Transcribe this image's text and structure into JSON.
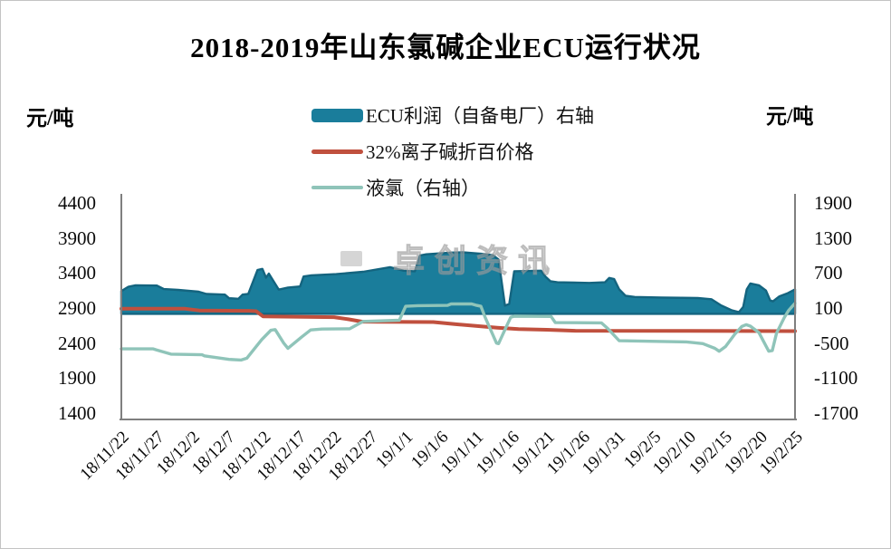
{
  "chart_data": {
    "type": "area+line combo",
    "title": "2018-2019年山东氯碱企业ECU运行状况",
    "legend_position": "top-center",
    "grid": false,
    "x_tick_labels": [
      "18/11/22",
      "18/11/27",
      "18/12/2",
      "18/12/7",
      "18/12/12",
      "18/12/17",
      "18/12/22",
      "18/12/27",
      "19/1/1",
      "19/1/6",
      "19/1/11",
      "19/1/16",
      "19/1/21",
      "19/1/26",
      "19/1/31",
      "19/2/5",
      "19/2/10",
      "19/2/15",
      "19/2/20",
      "19/2/25"
    ],
    "x_tick_day_indices": [
      0,
      5,
      10,
      15,
      20,
      25,
      30,
      35,
      40,
      45,
      50,
      55,
      60,
      65,
      70,
      75,
      80,
      85,
      90,
      95
    ],
    "x_range_days": [
      0,
      95
    ],
    "axes": {
      "left": {
        "unit": "元/吨",
        "ticks": [
          4400,
          3900,
          3400,
          2900,
          2400,
          1900,
          1400
        ],
        "max": 4400,
        "min": 1400
      },
      "right": {
        "unit": "元/吨",
        "ticks": [
          1900,
          1300,
          700,
          100,
          -500,
          -1100,
          -1700
        ],
        "max": 1900,
        "min": -1700
      }
    },
    "series": [
      {
        "name": "ECU利润（自备电厂）右轴",
        "axis": "right",
        "style": "area",
        "baseline": 0,
        "color": "#1a7d9b",
        "points": [
          [
            0,
            390
          ],
          [
            1,
            465
          ],
          [
            2,
            490
          ],
          [
            5,
            485
          ],
          [
            6,
            425
          ],
          [
            8,
            410
          ],
          [
            10.9,
            380
          ],
          [
            12,
            340
          ],
          [
            14.6,
            330
          ],
          [
            15.2,
            268
          ],
          [
            16.5,
            258
          ],
          [
            17.1,
            330
          ],
          [
            17.9,
            342
          ],
          [
            19.2,
            750
          ],
          [
            19.9,
            770
          ],
          [
            20.4,
            620
          ],
          [
            20.8,
            690
          ],
          [
            22.2,
            415
          ],
          [
            23.5,
            450
          ],
          [
            25.2,
            470
          ],
          [
            25.7,
            640
          ],
          [
            26.8,
            660
          ],
          [
            30.3,
            680
          ],
          [
            34.1,
            720
          ],
          [
            37.9,
            800
          ],
          [
            39.8,
            740
          ],
          [
            41.4,
            730
          ],
          [
            42.1,
            1000
          ],
          [
            43,
            1020
          ],
          [
            46.5,
            1050
          ],
          [
            48.1,
            1055
          ],
          [
            50.7,
            1030
          ],
          [
            52.4,
            1005
          ],
          [
            53.2,
            930
          ],
          [
            54.1,
            140
          ],
          [
            54.7,
            170
          ],
          [
            55.4,
            730
          ],
          [
            59.2,
            740
          ],
          [
            59.8,
            640
          ],
          [
            60.5,
            560
          ],
          [
            61.5,
            540
          ],
          [
            66,
            530
          ],
          [
            68.2,
            540
          ],
          [
            68.8,
            615
          ],
          [
            69.5,
            595
          ],
          [
            70.2,
            420
          ],
          [
            71.1,
            310
          ],
          [
            72.4,
            290
          ],
          [
            76.2,
            280
          ],
          [
            81.3,
            270
          ],
          [
            83.2,
            250
          ],
          [
            84.5,
            150
          ],
          [
            86.1,
            60
          ],
          [
            87.1,
            30
          ],
          [
            87.7,
            120
          ],
          [
            88.2,
            420
          ],
          [
            88.7,
            520
          ],
          [
            89.9,
            490
          ],
          [
            90.9,
            400
          ],
          [
            91.5,
            230
          ],
          [
            91.9,
            215
          ],
          [
            92.8,
            300
          ],
          [
            93.9,
            350
          ],
          [
            95,
            420
          ]
        ]
      },
      {
        "name": "32%离子碱折百价格",
        "axis": "left",
        "style": "line",
        "color": "#c0503e",
        "points": [
          [
            0,
            2890
          ],
          [
            9,
            2890
          ],
          [
            11,
            2865
          ],
          [
            18,
            2860
          ],
          [
            19,
            2855
          ],
          [
            20,
            2780
          ],
          [
            30,
            2770
          ],
          [
            32,
            2740
          ],
          [
            34,
            2705
          ],
          [
            44,
            2700
          ],
          [
            47,
            2670
          ],
          [
            50,
            2645
          ],
          [
            53,
            2620
          ],
          [
            56,
            2600
          ],
          [
            60,
            2590
          ],
          [
            64,
            2575
          ],
          [
            95,
            2570
          ]
        ]
      },
      {
        "name": "液氯（右轴）",
        "axis": "right",
        "style": "line",
        "color": "#8fc4b9",
        "points": [
          [
            0,
            -600
          ],
          [
            4.5,
            -600
          ],
          [
            5,
            -620
          ],
          [
            7,
            -690
          ],
          [
            11.4,
            -700
          ],
          [
            11.7,
            -720
          ],
          [
            15.2,
            -780
          ],
          [
            16.9,
            -790
          ],
          [
            17.7,
            -760
          ],
          [
            19.8,
            -440
          ],
          [
            21.1,
            -280
          ],
          [
            21.7,
            -270
          ],
          [
            22.9,
            -500
          ],
          [
            23.5,
            -590
          ],
          [
            25.4,
            -400
          ],
          [
            26.7,
            -275
          ],
          [
            28.3,
            -260
          ],
          [
            32.2,
            -255
          ],
          [
            34.1,
            -130
          ],
          [
            39.2,
            -110
          ],
          [
            40.1,
            130
          ],
          [
            41.8,
            140
          ],
          [
            46,
            145
          ],
          [
            46.5,
            170
          ],
          [
            49.4,
            170
          ],
          [
            50.1,
            145
          ],
          [
            50.7,
            130
          ],
          [
            51.3,
            -60
          ],
          [
            52.9,
            -500
          ],
          [
            53.2,
            -510
          ],
          [
            54.3,
            -215
          ],
          [
            54.9,
            -60
          ],
          [
            55.4,
            -40
          ],
          [
            60.6,
            -45
          ],
          [
            61.2,
            -150
          ],
          [
            67.7,
            -155
          ],
          [
            68.6,
            -250
          ],
          [
            70.2,
            -460
          ],
          [
            79.7,
            -480
          ],
          [
            82,
            -510
          ],
          [
            83.7,
            -590
          ],
          [
            84.3,
            -640
          ],
          [
            85.2,
            -560
          ],
          [
            86.5,
            -350
          ],
          [
            87.5,
            -215
          ],
          [
            88.1,
            -185
          ],
          [
            88.7,
            -210
          ],
          [
            89.9,
            -320
          ],
          [
            91.3,
            -640
          ],
          [
            91.8,
            -630
          ],
          [
            92.4,
            -330
          ],
          [
            93.5,
            -60
          ],
          [
            94.1,
            60
          ],
          [
            95,
            180
          ]
        ]
      }
    ]
  },
  "watermark": {
    "text": "卓创资讯"
  },
  "colors": {
    "area_fill": "#1a7d9b",
    "area_edge": "#14647f",
    "red_line": "#c0503e",
    "green_line": "#8fc4b9",
    "axis_line": "#7f7f7f",
    "text": "#0a0a0a",
    "watermark_grey": "#cbcbcb"
  }
}
